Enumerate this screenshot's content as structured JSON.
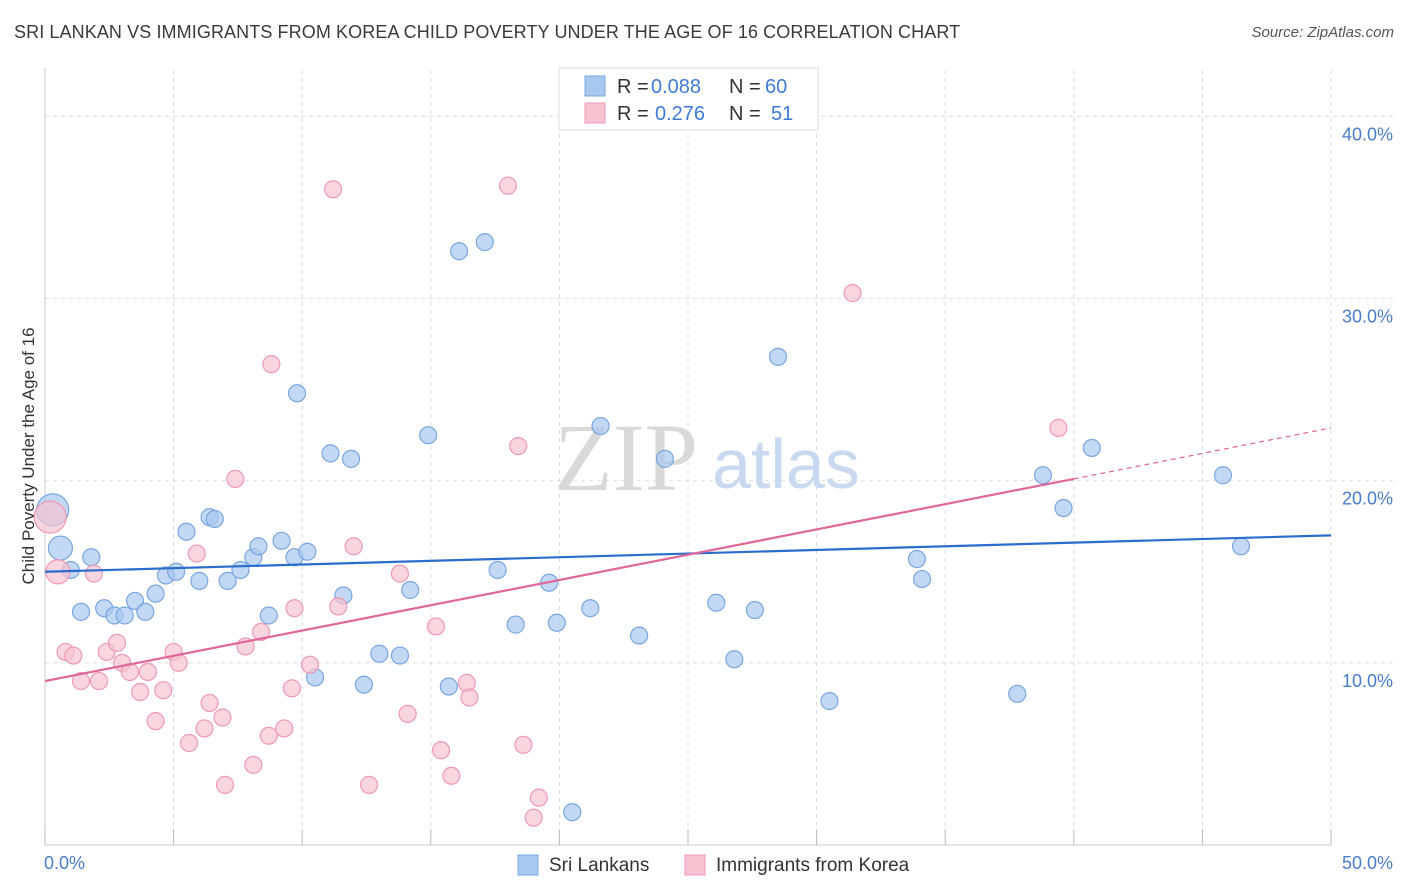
{
  "title": "SRI LANKAN VS IMMIGRANTS FROM KOREA CHILD POVERTY UNDER THE AGE OF 16 CORRELATION CHART",
  "source": "Source: ZipAtlas.com",
  "watermark": {
    "zip": "ZIP",
    "atlas": "atlas"
  },
  "legend": {
    "rows": [
      {
        "r_label": "R =",
        "r_value": "0.088",
        "n_label": "N =",
        "n_value": "60"
      },
      {
        "r_label": "R =",
        "r_value": "0.276",
        "n_label": "N =",
        "n_value": "51"
      }
    ]
  },
  "bottom_legend": [
    "Sri Lankans",
    "Immigrants from Korea"
  ],
  "colors": {
    "blue_fill": "#a9c8f0",
    "blue_stroke": "#7aa7e0",
    "blue_line": "#2a6dcc",
    "pink_fill": "#f7c3d2",
    "pink_stroke": "#ee9ab4",
    "pink_line": "#e0679a",
    "grid": "#dddddd",
    "axis_text": "#4a7cc9"
  },
  "chart_data": {
    "type": "scatter",
    "title": "SRI LANKAN VS IMMIGRANTS FROM KOREA CHILD POVERTY UNDER THE AGE OF 16 CORRELATION CHART",
    "xlabel": "",
    "ylabel": "Child Poverty Under the Age of 16",
    "xlim": [
      0,
      50
    ],
    "ylim": [
      0,
      42
    ],
    "x_tick_labels": [
      "0.0%",
      "50.0%"
    ],
    "y_ticks": [
      10,
      20,
      30,
      40
    ],
    "y_tick_labels": [
      "10.0%",
      "20.0%",
      "30.0%",
      "40.0%"
    ],
    "grid": true,
    "legend_position": "top-center",
    "series": [
      {
        "name": "Sri Lankans",
        "color": "#a9c8f0",
        "points": [
          [
            0.3,
            18.4,
            "large"
          ],
          [
            0.6,
            16.3,
            "mid"
          ],
          [
            1.0,
            15.1
          ],
          [
            1.4,
            12.8
          ],
          [
            1.8,
            15.8
          ],
          [
            2.3,
            13.0
          ],
          [
            2.7,
            12.6
          ],
          [
            3.1,
            12.6
          ],
          [
            3.5,
            13.4
          ],
          [
            3.9,
            12.8
          ],
          [
            4.3,
            13.8
          ],
          [
            4.7,
            14.8
          ],
          [
            5.1,
            15.0
          ],
          [
            5.5,
            17.2
          ],
          [
            6.0,
            14.5
          ],
          [
            6.4,
            18.0
          ],
          [
            6.6,
            17.9
          ],
          [
            7.1,
            14.5
          ],
          [
            7.6,
            15.1
          ],
          [
            8.1,
            15.8
          ],
          [
            8.3,
            16.4
          ],
          [
            8.7,
            12.6
          ],
          [
            9.2,
            16.7
          ],
          [
            9.7,
            15.8
          ],
          [
            10.2,
            16.1
          ],
          [
            9.8,
            24.8
          ],
          [
            10.5,
            9.2
          ],
          [
            11.1,
            21.5
          ],
          [
            11.6,
            13.7
          ],
          [
            11.9,
            21.2
          ],
          [
            12.4,
            8.8
          ],
          [
            13.0,
            10.5
          ],
          [
            13.8,
            10.4
          ],
          [
            14.2,
            14.0
          ],
          [
            14.9,
            22.5
          ],
          [
            15.7,
            8.7
          ],
          [
            16.1,
            32.6
          ],
          [
            17.1,
            33.1
          ],
          [
            17.6,
            15.1
          ],
          [
            18.3,
            12.1
          ],
          [
            19.6,
            14.4
          ],
          [
            19.9,
            12.2
          ],
          [
            21.2,
            13.0
          ],
          [
            21.6,
            23.0
          ],
          [
            23.1,
            11.5
          ],
          [
            24.1,
            21.2
          ],
          [
            26.1,
            13.3
          ],
          [
            26.8,
            10.2
          ],
          [
            27.6,
            12.9
          ],
          [
            28.5,
            26.8
          ],
          [
            30.5,
            7.9
          ],
          [
            33.9,
            15.7
          ],
          [
            34.1,
            14.6
          ],
          [
            37.8,
            8.3
          ],
          [
            38.8,
            20.3
          ],
          [
            39.6,
            18.5
          ],
          [
            40.7,
            21.8
          ],
          [
            45.8,
            20.3
          ],
          [
            46.5,
            16.4
          ],
          [
            20.5,
            1.8
          ]
        ]
      },
      {
        "name": "Immigrants from Korea",
        "color": "#f7c3d2",
        "points": [
          [
            0.2,
            18.0,
            "large"
          ],
          [
            0.5,
            15.0,
            "mid"
          ],
          [
            0.8,
            10.6
          ],
          [
            1.1,
            10.4
          ],
          [
            1.4,
            9.0
          ],
          [
            1.9,
            14.9
          ],
          [
            2.1,
            9.0
          ],
          [
            2.4,
            10.6
          ],
          [
            2.8,
            11.1
          ],
          [
            3.0,
            10.0
          ],
          [
            3.3,
            9.5
          ],
          [
            3.7,
            8.4
          ],
          [
            4.0,
            9.5
          ],
          [
            4.3,
            6.8
          ],
          [
            4.6,
            8.5
          ],
          [
            5.0,
            10.6
          ],
          [
            5.2,
            10.0
          ],
          [
            5.6,
            5.6
          ],
          [
            5.9,
            16.0
          ],
          [
            6.2,
            6.4
          ],
          [
            6.4,
            7.8
          ],
          [
            6.9,
            7.0
          ],
          [
            7.0,
            3.3
          ],
          [
            7.4,
            20.1
          ],
          [
            7.8,
            10.9
          ],
          [
            8.1,
            4.4
          ],
          [
            8.4,
            11.7
          ],
          [
            8.7,
            6.0
          ],
          [
            8.8,
            26.4
          ],
          [
            9.3,
            6.4
          ],
          [
            9.6,
            8.6
          ],
          [
            9.7,
            13.0
          ],
          [
            10.3,
            9.9
          ],
          [
            11.2,
            36.0
          ],
          [
            11.4,
            13.1
          ],
          [
            12.0,
            16.4
          ],
          [
            12.6,
            3.3
          ],
          [
            13.8,
            14.9
          ],
          [
            14.1,
            7.2
          ],
          [
            15.2,
            12.0
          ],
          [
            15.4,
            5.2
          ],
          [
            15.8,
            3.8
          ],
          [
            16.4,
            8.9
          ],
          [
            16.5,
            8.1
          ],
          [
            18.0,
            36.2
          ],
          [
            18.4,
            21.9
          ],
          [
            18.6,
            5.5
          ],
          [
            19.0,
            1.5
          ],
          [
            19.2,
            2.6
          ],
          [
            31.4,
            30.3
          ],
          [
            39.4,
            22.9
          ]
        ]
      }
    ],
    "trend_lines": [
      {
        "series": "Sri Lankans",
        "x": [
          0,
          50
        ],
        "y": [
          15.0,
          17.0
        ]
      },
      {
        "series": "Immigrants from Korea",
        "x": [
          0,
          40
        ],
        "y": [
          9.0,
          20.1
        ],
        "dashed_extension_to": [
          50,
          22.9
        ]
      }
    ]
  }
}
